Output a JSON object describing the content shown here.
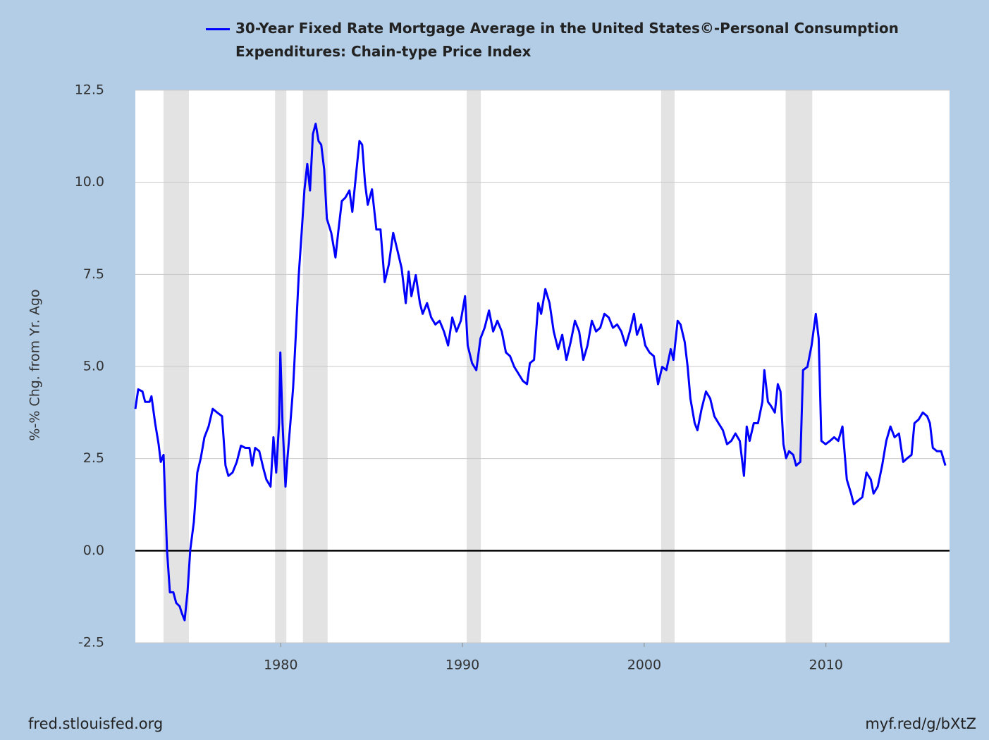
{
  "chart_data": {
    "type": "line",
    "ylabel": "%-% Chg. from Yr. Ago",
    "source": "fred.stlouisfed.org",
    "link": "myf.red/g/bXtZ",
    "xlim": [
      1972,
      2016.8
    ],
    "xticks": [
      1980,
      1990,
      2000,
      2010
    ],
    "ylim": [
      -2.5,
      12.5
    ],
    "yticks": [
      12.5,
      {
        "value": 10,
        "label": "10.0"
      },
      7.5,
      {
        "value": 5,
        "label": "5.0"
      },
      2.5,
      {
        "value": 0,
        "label": "0.0"
      },
      -2.5
    ],
    "grid": true,
    "recessions": [
      [
        1973.55,
        1974.95
      ],
      [
        1979.69,
        1980.31
      ],
      [
        1981.22,
        1982.58
      ],
      [
        1990.23,
        1991.01
      ],
      [
        2000.93,
        2001.67
      ],
      [
        2007.78,
        2009.25
      ]
    ],
    "x": [
      1972.0,
      1972.16,
      1972.39,
      1972.54,
      1972.78,
      1972.89,
      1973.09,
      1973.28,
      1973.4,
      1973.55,
      1973.63,
      1973.74,
      1973.9,
      1974.09,
      1974.25,
      1974.44,
      1974.56,
      1974.71,
      1974.87,
      1975.02,
      1975.22,
      1975.41,
      1975.6,
      1975.8,
      1976.03,
      1976.26,
      1976.5,
      1976.77,
      1976.96,
      1977.12,
      1977.35,
      1977.58,
      1977.81,
      1978.05,
      1978.28,
      1978.43,
      1978.59,
      1978.82,
      1979.05,
      1979.21,
      1979.44,
      1979.6,
      1979.75,
      1979.91,
      1979.98,
      1980.1,
      1980.26,
      1980.37,
      1980.53,
      1980.68,
      1980.84,
      1980.99,
      1981.15,
      1981.3,
      1981.46,
      1981.61,
      1981.77,
      1981.92,
      1982.08,
      1982.23,
      1982.39,
      1982.54,
      1982.78,
      1983.01,
      1983.16,
      1983.36,
      1983.55,
      1983.78,
      1983.94,
      1984.17,
      1984.33,
      1984.48,
      1984.64,
      1984.79,
      1985.02,
      1985.26,
      1985.49,
      1985.72,
      1985.95,
      1986.19,
      1986.42,
      1986.65,
      1986.88,
      1987.04,
      1987.19,
      1987.43,
      1987.66,
      1987.81,
      1988.05,
      1988.28,
      1988.51,
      1988.74,
      1988.98,
      1989.21,
      1989.44,
      1989.67,
      1989.91,
      1990.14,
      1990.29,
      1990.53,
      1990.76,
      1990.99,
      1991.22,
      1991.46,
      1991.69,
      1991.92,
      1992.16,
      1992.39,
      1992.62,
      1992.85,
      1993.09,
      1993.32,
      1993.55,
      1993.71,
      1993.94,
      1994.17,
      1994.33,
      1994.56,
      1994.79,
      1995.02,
      1995.26,
      1995.49,
      1995.72,
      1995.95,
      1996.19,
      1996.42,
      1996.65,
      1996.88,
      1997.12,
      1997.35,
      1997.58,
      1997.81,
      1998.05,
      1998.28,
      1998.51,
      1998.74,
      1998.98,
      1999.21,
      1999.44,
      1999.6,
      1999.83,
      2000.06,
      2000.29,
      2000.53,
      2000.76,
      2000.99,
      2001.22,
      2001.46,
      2001.61,
      2001.84,
      2002.0,
      2002.23,
      2002.39,
      2002.54,
      2002.78,
      2002.93,
      2003.16,
      2003.4,
      2003.63,
      2003.86,
      2004.09,
      2004.33,
      2004.56,
      2004.79,
      2005.02,
      2005.26,
      2005.49,
      2005.64,
      2005.8,
      2006.03,
      2006.26,
      2006.5,
      2006.61,
      2006.81,
      2006.96,
      2007.19,
      2007.35,
      2007.5,
      2007.66,
      2007.81,
      2007.97,
      2008.2,
      2008.36,
      2008.59,
      2008.74,
      2008.98,
      2009.21,
      2009.44,
      2009.6,
      2009.75,
      2009.98,
      2010.22,
      2010.45,
      2010.68,
      2010.91,
      2011.15,
      2011.38,
      2011.53,
      2011.77,
      2012.0,
      2012.23,
      2012.47,
      2012.62,
      2012.85,
      2013.09,
      2013.32,
      2013.55,
      2013.78,
      2014.02,
      2014.25,
      2014.48,
      2014.71,
      2014.87,
      2015.1,
      2015.33,
      2015.57,
      2015.72,
      2015.88,
      2016.11,
      2016.34,
      2016.57
    ],
    "series": [
      {
        "name": "30-Year Fixed Rate Mortgage Average in the United States©-Personal Consumption Expenditures: Chain-type Price Index",
        "color": "#0000ff",
        "values": [
          3.85,
          4.38,
          4.32,
          4.04,
          4.04,
          4.19,
          3.46,
          2.89,
          2.41,
          2.6,
          1.55,
          0.02,
          -1.13,
          -1.13,
          -1.42,
          -1.51,
          -1.7,
          -1.89,
          -1.13,
          0.02,
          0.78,
          2.12,
          2.51,
          3.08,
          3.37,
          3.85,
          3.75,
          3.65,
          2.31,
          2.03,
          2.12,
          2.41,
          2.85,
          2.79,
          2.79,
          2.31,
          2.79,
          2.7,
          2.22,
          1.93,
          1.74,
          3.08,
          2.12,
          3.46,
          5.38,
          3.46,
          1.74,
          2.51,
          3.46,
          4.42,
          5.95,
          7.48,
          8.63,
          9.78,
          10.5,
          9.78,
          11.31,
          11.59,
          11.12,
          11.02,
          10.35,
          9.01,
          8.63,
          7.96,
          8.63,
          9.49,
          9.58,
          9.78,
          9.2,
          10.35,
          11.12,
          11.02,
          9.97,
          9.39,
          9.81,
          8.72,
          8.72,
          7.29,
          7.77,
          8.63,
          8.15,
          7.67,
          6.72,
          7.58,
          6.91,
          7.48,
          6.72,
          6.43,
          6.72,
          6.33,
          6.14,
          6.24,
          5.95,
          5.57,
          6.33,
          5.95,
          6.24,
          6.91,
          5.57,
          5.09,
          4.9,
          5.76,
          6.05,
          6.52,
          5.95,
          6.24,
          5.95,
          5.38,
          5.28,
          4.99,
          4.8,
          4.61,
          4.52,
          5.09,
          5.18,
          6.72,
          6.43,
          7.1,
          6.72,
          5.95,
          5.47,
          5.86,
          5.18,
          5.66,
          6.24,
          5.95,
          5.18,
          5.57,
          6.24,
          5.95,
          6.05,
          6.43,
          6.33,
          6.05,
          6.14,
          5.95,
          5.57,
          5.95,
          6.43,
          5.86,
          6.14,
          5.57,
          5.38,
          5.28,
          4.52,
          4.99,
          4.9,
          5.47,
          5.18,
          6.24,
          6.14,
          5.66,
          4.99,
          4.13,
          3.46,
          3.27,
          3.85,
          4.32,
          4.13,
          3.65,
          3.46,
          3.27,
          2.89,
          2.98,
          3.18,
          2.98,
          2.03,
          3.37,
          2.98,
          3.46,
          3.46,
          4.04,
          4.9,
          4.04,
          3.94,
          3.75,
          4.52,
          4.32,
          2.89,
          2.51,
          2.7,
          2.6,
          2.31,
          2.41,
          4.9,
          4.99,
          5.57,
          6.43,
          5.76,
          2.98,
          2.89,
          2.98,
          3.08,
          2.98,
          3.37,
          1.93,
          1.55,
          1.26,
          1.36,
          1.45,
          2.12,
          1.93,
          1.55,
          1.74,
          2.31,
          2.98,
          3.37,
          3.08,
          3.18,
          2.41,
          2.51,
          2.6,
          3.46,
          3.56,
          3.75,
          3.65,
          3.46,
          2.79,
          2.7,
          2.7,
          2.31
        ]
      }
    ]
  }
}
